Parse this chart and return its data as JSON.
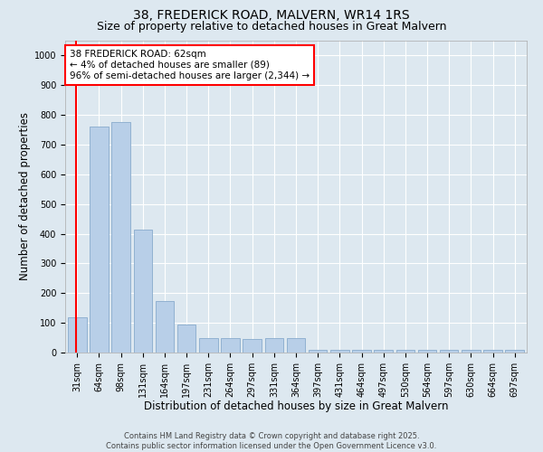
{
  "title_line1": "38, FREDERICK ROAD, MALVERN, WR14 1RS",
  "title_line2": "Size of property relative to detached houses in Great Malvern",
  "xlabel": "Distribution of detached houses by size in Great Malvern",
  "ylabel": "Number of detached properties",
  "categories": [
    "31sqm",
    "64sqm",
    "98sqm",
    "131sqm",
    "164sqm",
    "197sqm",
    "231sqm",
    "264sqm",
    "297sqm",
    "331sqm",
    "364sqm",
    "397sqm",
    "431sqm",
    "464sqm",
    "497sqm",
    "530sqm",
    "564sqm",
    "597sqm",
    "630sqm",
    "664sqm",
    "697sqm"
  ],
  "values": [
    120,
    760,
    775,
    415,
    175,
    95,
    50,
    48,
    47,
    50,
    50,
    8,
    8,
    8,
    8,
    8,
    8,
    8,
    8,
    8,
    8
  ],
  "bar_color": "#b8cfe8",
  "bar_edge_color": "#88aacc",
  "ylim": [
    0,
    1050
  ],
  "yticks": [
    0,
    100,
    200,
    300,
    400,
    500,
    600,
    700,
    800,
    900,
    1000
  ],
  "annotation_text": "38 FREDERICK ROAD: 62sqm\n← 4% of detached houses are smaller (89)\n96% of semi-detached houses are larger (2,344) →",
  "annotation_box_facecolor": "white",
  "annotation_box_edgecolor": "red",
  "vline_color": "red",
  "vline_x": -0.05,
  "background_color": "#dde8f0",
  "plot_background": "#dde8f0",
  "footnote": "Contains HM Land Registry data © Crown copyright and database right 2025.\nContains public sector information licensed under the Open Government Licence v3.0.",
  "title_fontsize": 10,
  "subtitle_fontsize": 9,
  "xlabel_fontsize": 8.5,
  "ylabel_fontsize": 8.5,
  "tick_fontsize": 7,
  "annot_fontsize": 7.5,
  "footnote_fontsize": 6
}
